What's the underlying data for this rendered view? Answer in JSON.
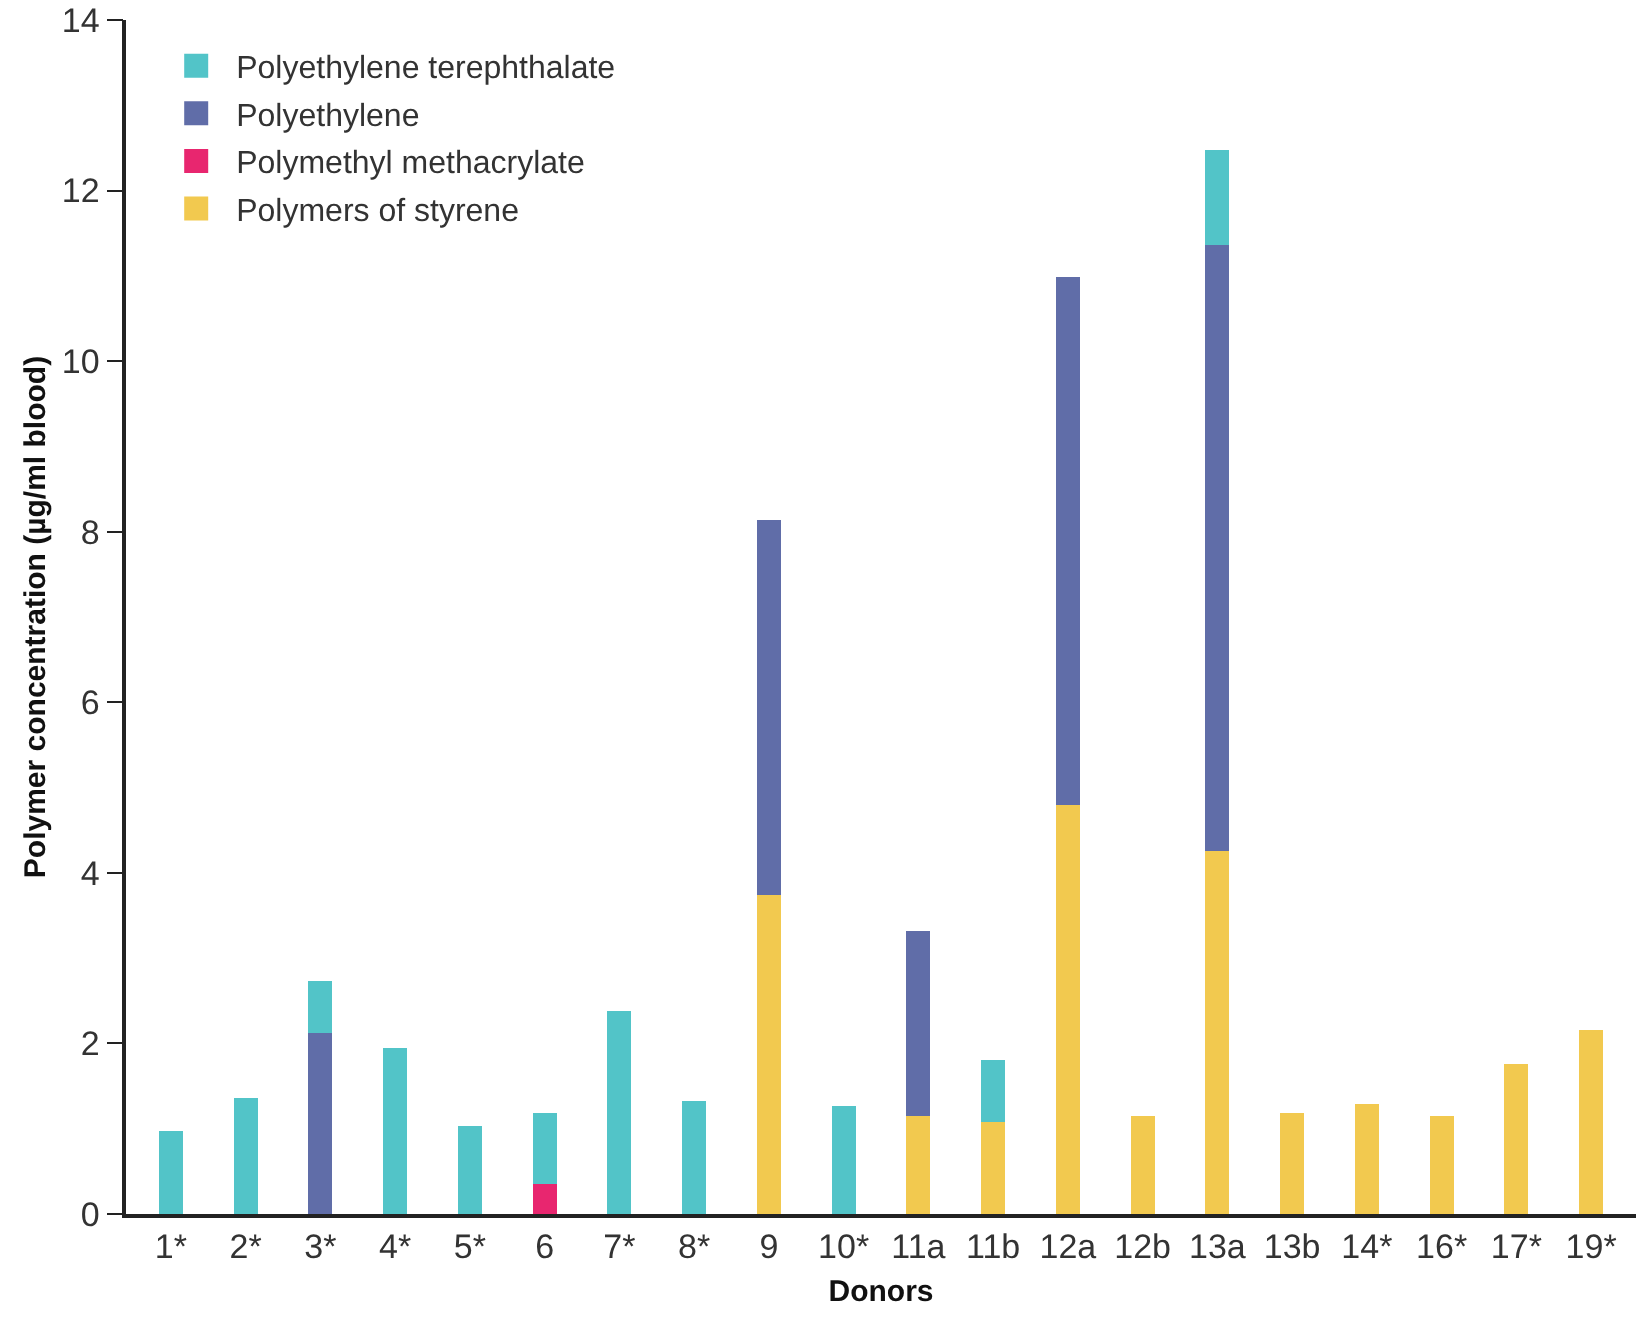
{
  "chart_data": {
    "type": "bar",
    "stacked": true,
    "xlabel": "Donors",
    "ylabel": "Polymer concentration (µg/ml blood)",
    "categories": [
      "1*",
      "2*",
      "3*",
      "4*",
      "5*",
      "6",
      "7*",
      "8*",
      "9",
      "10*",
      "11a",
      "11b",
      "12a",
      "12b",
      "13a",
      "13b",
      "14*",
      "16*",
      "17*",
      "19*"
    ],
    "series": [
      {
        "name": "Polymers of styrene",
        "color": "#f2c94f",
        "values": [
          null,
          null,
          null,
          null,
          null,
          null,
          null,
          null,
          3.74,
          null,
          1.15,
          1.08,
          4.8,
          1.15,
          4.26,
          1.18,
          1.29,
          1.15,
          1.76,
          2.16
        ]
      },
      {
        "name": "Polymethyl methacrylate",
        "color": "#e8266f",
        "values": [
          null,
          null,
          null,
          null,
          null,
          0.35,
          null,
          null,
          null,
          null,
          null,
          null,
          null,
          null,
          null,
          null,
          null,
          null,
          null,
          null
        ]
      },
      {
        "name": "Polyethylene",
        "color": "#606da8",
        "values": [
          null,
          null,
          2.12,
          null,
          null,
          null,
          null,
          null,
          4.4,
          null,
          2.17,
          null,
          6.19,
          null,
          7.1,
          null,
          null,
          null,
          null,
          null
        ]
      },
      {
        "name": "Polyethylene terephthalate",
        "color": "#52c4c8",
        "values": [
          0.97,
          1.36,
          0.61,
          1.95,
          1.03,
          0.83,
          2.38,
          1.32,
          null,
          1.27,
          null,
          0.73,
          null,
          null,
          1.11,
          null,
          null,
          null,
          null,
          null
        ]
      }
    ],
    "ylim": [
      0,
      14
    ],
    "yticks": [
      0,
      2,
      4,
      6,
      8,
      10,
      12,
      14
    ],
    "grid": false,
    "legend": "top left"
  }
}
